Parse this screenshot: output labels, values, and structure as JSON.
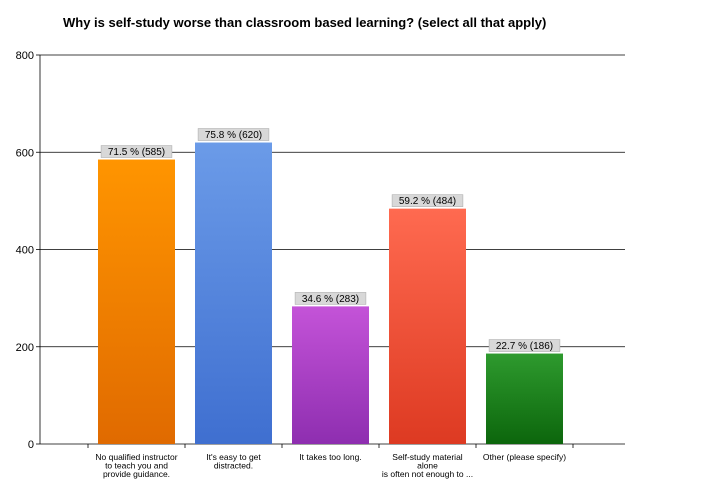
{
  "chart_data": {
    "type": "bar",
    "title": "Why is self-study worse than classroom based learning? (select all that apply)",
    "xlabel": "",
    "ylabel": "",
    "ylim": [
      0,
      800
    ],
    "yticks": [
      0,
      200,
      400,
      600,
      800
    ],
    "grid": true,
    "categories": [
      [
        "No qualified instructor",
        "to teach you and",
        "provide guidance."
      ],
      [
        "It's easy to get",
        "distracted."
      ],
      [
        "It takes too long."
      ],
      [
        "Self-study material",
        "alone",
        "is often not enough to ..."
      ],
      [
        "Other (please specify)"
      ]
    ],
    "values": [
      585,
      620,
      283,
      484,
      186
    ],
    "data_labels": [
      "71.5 % (585)",
      "75.8 % (620)",
      "34.6 % (283)",
      "59.2 % (484)",
      "22.7 % (186)"
    ],
    "colors": [
      [
        "#ff9500",
        "#e06a00"
      ],
      [
        "#6b9be8",
        "#3f6fd0"
      ],
      [
        "#c453d8",
        "#8e2eb0"
      ],
      [
        "#ff6a50",
        "#dd3a22"
      ],
      [
        "#2e9a2e",
        "#0c660c"
      ]
    ]
  }
}
